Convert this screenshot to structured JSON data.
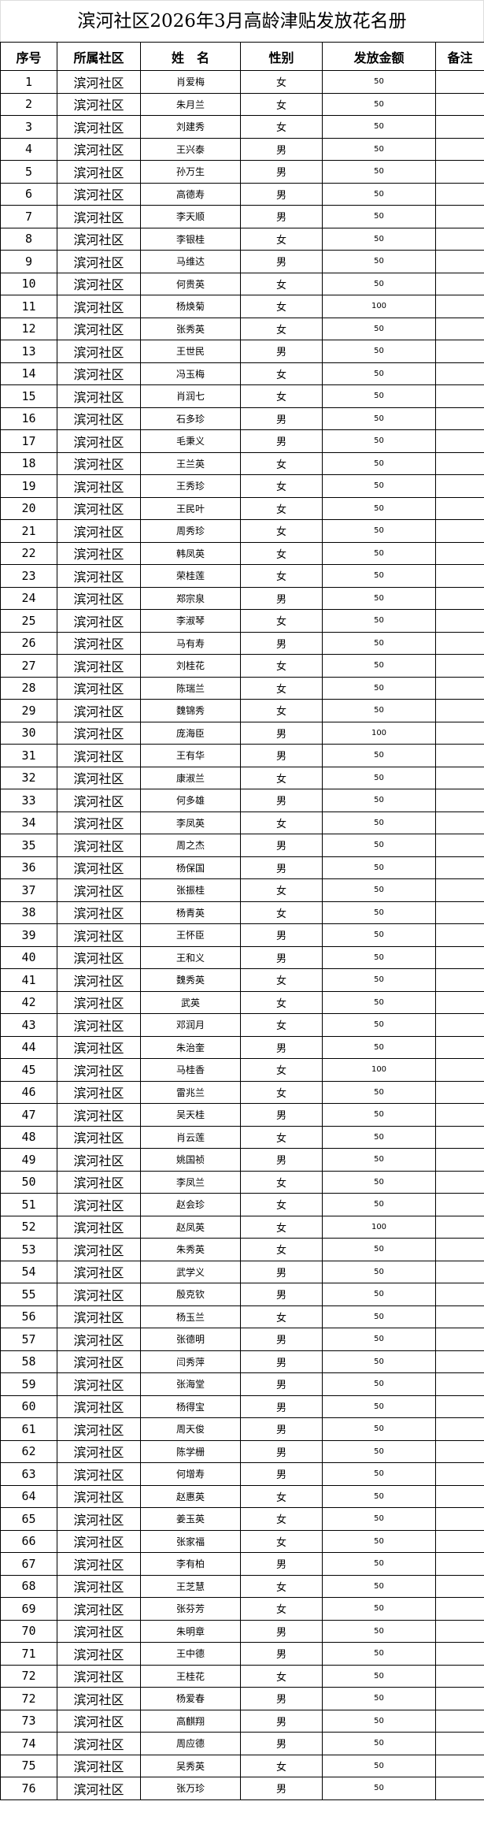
{
  "title": "滨河社区2026年3月高龄津贴发放花名册",
  "headers": [
    "序号",
    "所属社区",
    "姓　名",
    "性别",
    "发放金额",
    "备注"
  ],
  "rows": [
    [
      "1",
      "滨河社区",
      "肖爱梅",
      "女",
      "50",
      ""
    ],
    [
      "2",
      "滨河社区",
      "朱月兰",
      "女",
      "50",
      ""
    ],
    [
      "3",
      "滨河社区",
      "刘建秀",
      "女",
      "50",
      ""
    ],
    [
      "4",
      "滨河社区",
      "王兴泰",
      "男",
      "50",
      ""
    ],
    [
      "5",
      "滨河社区",
      "孙万生",
      "男",
      "50",
      ""
    ],
    [
      "6",
      "滨河社区",
      "高德寿",
      "男",
      "50",
      ""
    ],
    [
      "7",
      "滨河社区",
      "李天顺",
      "男",
      "50",
      ""
    ],
    [
      "8",
      "滨河社区",
      "李银桂",
      "女",
      "50",
      ""
    ],
    [
      "9",
      "滨河社区",
      "马维达",
      "男",
      "50",
      ""
    ],
    [
      "10",
      "滨河社区",
      "何贵英",
      "女",
      "50",
      ""
    ],
    [
      "11",
      "滨河社区",
      "杨焕菊",
      "女",
      "100",
      ""
    ],
    [
      "12",
      "滨河社区",
      "张秀英",
      "女",
      "50",
      ""
    ],
    [
      "13",
      "滨河社区",
      "王世民",
      "男",
      "50",
      ""
    ],
    [
      "14",
      "滨河社区",
      "冯玉梅",
      "女",
      "50",
      ""
    ],
    [
      "15",
      "滨河社区",
      "肖润七",
      "女",
      "50",
      ""
    ],
    [
      "16",
      "滨河社区",
      "石多珍",
      "男",
      "50",
      ""
    ],
    [
      "17",
      "滨河社区",
      "毛秉义",
      "男",
      "50",
      ""
    ],
    [
      "18",
      "滨河社区",
      "王兰英",
      "女",
      "50",
      ""
    ],
    [
      "19",
      "滨河社区",
      "王秀珍",
      "女",
      "50",
      ""
    ],
    [
      "20",
      "滨河社区",
      "王民叶",
      "女",
      "50",
      ""
    ],
    [
      "21",
      "滨河社区",
      "周秀珍",
      "女",
      "50",
      ""
    ],
    [
      "22",
      "滨河社区",
      "韩凤英",
      "女",
      "50",
      ""
    ],
    [
      "23",
      "滨河社区",
      "荣桂莲",
      "女",
      "50",
      ""
    ],
    [
      "24",
      "滨河社区",
      "郑宗泉",
      "男",
      "50",
      ""
    ],
    [
      "25",
      "滨河社区",
      "李淑琴",
      "女",
      "50",
      ""
    ],
    [
      "26",
      "滨河社区",
      "马有寿",
      "男",
      "50",
      ""
    ],
    [
      "27",
      "滨河社区",
      "刘桂花",
      "女",
      "50",
      ""
    ],
    [
      "28",
      "滨河社区",
      "陈瑞兰",
      "女",
      "50",
      ""
    ],
    [
      "29",
      "滨河社区",
      "魏锦秀",
      "女",
      "50",
      ""
    ],
    [
      "30",
      "滨河社区",
      "庞海臣",
      "男",
      "100",
      ""
    ],
    [
      "31",
      "滨河社区",
      "王有华",
      "男",
      "50",
      ""
    ],
    [
      "32",
      "滨河社区",
      "康淑兰",
      "女",
      "50",
      ""
    ],
    [
      "33",
      "滨河社区",
      "何多雄",
      "男",
      "50",
      ""
    ],
    [
      "34",
      "滨河社区",
      "李凤英",
      "女",
      "50",
      ""
    ],
    [
      "35",
      "滨河社区",
      "周之杰",
      "男",
      "50",
      ""
    ],
    [
      "36",
      "滨河社区",
      "杨保国",
      "男",
      "50",
      ""
    ],
    [
      "37",
      "滨河社区",
      "张振桂",
      "女",
      "50",
      ""
    ],
    [
      "38",
      "滨河社区",
      "杨青英",
      "女",
      "50",
      ""
    ],
    [
      "39",
      "滨河社区",
      "王怀臣",
      "男",
      "50",
      ""
    ],
    [
      "40",
      "滨河社区",
      "王和义",
      "男",
      "50",
      ""
    ],
    [
      "41",
      "滨河社区",
      "魏秀英",
      "女",
      "50",
      ""
    ],
    [
      "42",
      "滨河社区",
      "武英",
      "女",
      "50",
      ""
    ],
    [
      "43",
      "滨河社区",
      "邓润月",
      "女",
      "50",
      ""
    ],
    [
      "44",
      "滨河社区",
      "朱治奎",
      "男",
      "50",
      ""
    ],
    [
      "45",
      "滨河社区",
      "马桂香",
      "女",
      "100",
      ""
    ],
    [
      "46",
      "滨河社区",
      "雷兆兰",
      "女",
      "50",
      ""
    ],
    [
      "47",
      "滨河社区",
      "吴天桂",
      "男",
      "50",
      ""
    ],
    [
      "48",
      "滨河社区",
      "肖云莲",
      "女",
      "50",
      ""
    ],
    [
      "49",
      "滨河社区",
      "姚国祯",
      "男",
      "50",
      ""
    ],
    [
      "50",
      "滨河社区",
      "李凤兰",
      "女",
      "50",
      ""
    ],
    [
      "51",
      "滨河社区",
      "赵会珍",
      "女",
      "50",
      ""
    ],
    [
      "52",
      "滨河社区",
      "赵凤英",
      "女",
      "100",
      ""
    ],
    [
      "53",
      "滨河社区",
      "朱秀英",
      "女",
      "50",
      ""
    ],
    [
      "54",
      "滨河社区",
      "武学义",
      "男",
      "50",
      ""
    ],
    [
      "55",
      "滨河社区",
      "殷克钦",
      "男",
      "50",
      ""
    ],
    [
      "56",
      "滨河社区",
      "杨玉兰",
      "女",
      "50",
      ""
    ],
    [
      "57",
      "滨河社区",
      "张德明",
      "男",
      "50",
      ""
    ],
    [
      "58",
      "滨河社区",
      "闫秀萍",
      "男",
      "50",
      ""
    ],
    [
      "59",
      "滨河社区",
      "张海堂",
      "男",
      "50",
      ""
    ],
    [
      "60",
      "滨河社区",
      "杨得宝",
      "男",
      "50",
      ""
    ],
    [
      "61",
      "滨河社区",
      "周天俊",
      "男",
      "50",
      ""
    ],
    [
      "62",
      "滨河社区",
      "陈学栅",
      "男",
      "50",
      ""
    ],
    [
      "63",
      "滨河社区",
      "何增寿",
      "男",
      "50",
      ""
    ],
    [
      "64",
      "滨河社区",
      "赵惠英",
      "女",
      "50",
      ""
    ],
    [
      "65",
      "滨河社区",
      "姜玉英",
      "女",
      "50",
      ""
    ],
    [
      "66",
      "滨河社区",
      "张家福",
      "女",
      "50",
      ""
    ],
    [
      "67",
      "滨河社区",
      "李有柏",
      "男",
      "50",
      ""
    ],
    [
      "68",
      "滨河社区",
      "王芝慧",
      "女",
      "50",
      ""
    ],
    [
      "69",
      "滨河社区",
      "张芬芳",
      "女",
      "50",
      ""
    ],
    [
      "70",
      "滨河社区",
      "朱明章",
      "男",
      "50",
      ""
    ],
    [
      "71",
      "滨河社区",
      "王中德",
      "男",
      "50",
      ""
    ],
    [
      "72",
      "滨河社区",
      "王桂花",
      "女",
      "50",
      ""
    ],
    [
      "72",
      "滨河社区",
      "杨爱春",
      "男",
      "50",
      ""
    ],
    [
      "73",
      "滨河社区",
      "高麒翔",
      "男",
      "50",
      ""
    ],
    [
      "74",
      "滨河社区",
      "周应德",
      "男",
      "50",
      ""
    ],
    [
      "75",
      "滨河社区",
      "吴秀英",
      "女",
      "50",
      ""
    ],
    [
      "76",
      "滨河社区",
      "张万珍",
      "男",
      "50",
      ""
    ]
  ]
}
